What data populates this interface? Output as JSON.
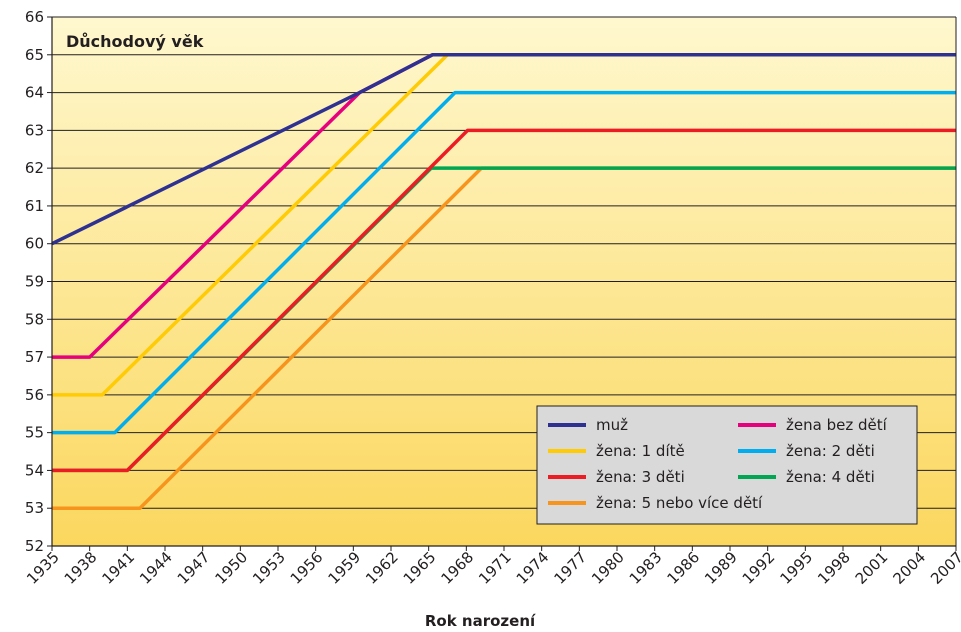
{
  "chart_data": {
    "type": "line",
    "title": "Důchodový věk",
    "xlabel": "Rok narození",
    "ylabel": "",
    "xlim": [
      1935,
      2007
    ],
    "ylim": [
      52,
      66
    ],
    "x_ticks": [
      "1935",
      "1938",
      "1941",
      "1944",
      "1947",
      "1950",
      "1953",
      "1956",
      "1959",
      "1962",
      "1965",
      "1968",
      "1971",
      "1974",
      "1977",
      "1980",
      "1983",
      "1986",
      "1989",
      "1992",
      "1995",
      "1998",
      "2001",
      "2004",
      "2007"
    ],
    "y_ticks": [
      "52",
      "53",
      "54",
      "55",
      "56",
      "57",
      "58",
      "59",
      "60",
      "61",
      "62",
      "63",
      "64",
      "65",
      "66"
    ],
    "grid": true,
    "legend_position": "bottom-right",
    "series": [
      {
        "name": "muž",
        "color": "#2e3192",
        "x": [
          1935,
          1959.5,
          1965.3,
          2007
        ],
        "y": [
          60,
          64,
          65,
          65
        ]
      },
      {
        "name": "žena bez dětí",
        "color": "#e6007e",
        "x": [
          1935,
          1938,
          1959.5,
          1965.3,
          2007
        ],
        "y": [
          57,
          57,
          64,
          65,
          65
        ]
      },
      {
        "name": "žena: 1 dítě",
        "color": "#ffcb05",
        "x": [
          1935,
          1939,
          1966.5,
          2007
        ],
        "y": [
          56,
          56,
          65,
          65
        ]
      },
      {
        "name": "žena: 2 děti",
        "color": "#00aeef",
        "x": [
          1935,
          1940,
          1967.1,
          2007
        ],
        "y": [
          55,
          55,
          64,
          64
        ]
      },
      {
        "name": "žena: 3 děti",
        "color": "#ed1c24",
        "x": [
          1935,
          1941,
          1968.1,
          2007
        ],
        "y": [
          54,
          54,
          63,
          63
        ]
      },
      {
        "name": "žena: 4 děti",
        "color": "#00a651",
        "x": [
          1935,
          1941,
          1965.2,
          1968.5,
          2007
        ],
        "y": [
          54,
          54,
          62,
          62,
          62
        ]
      },
      {
        "name": "žena: 5 nebo více dětí",
        "color": "#f7941d",
        "x": [
          1935,
          1942,
          1969.2,
          2007
        ],
        "y": [
          53,
          53,
          62,
          62
        ]
      }
    ],
    "legend": [
      {
        "name": "muž",
        "color": "#2e3192"
      },
      {
        "name": "žena bez dětí",
        "color": "#e6007e"
      },
      {
        "name": "žena: 1 dítě",
        "color": "#ffcb05"
      },
      {
        "name": "žena: 2 děti",
        "color": "#00aeef"
      },
      {
        "name": "žena: 3 děti",
        "color": "#ed1c24"
      },
      {
        "name": "žena: 4 děti",
        "color": "#00a651"
      },
      {
        "name": "žena: 5 nebo více dětí",
        "color": "#f7941d"
      }
    ]
  },
  "colors": {
    "plot_bg_top": "#fff8cf",
    "plot_bg_bottom": "#fbd75e",
    "legend_bg": "#d9d9d9"
  }
}
